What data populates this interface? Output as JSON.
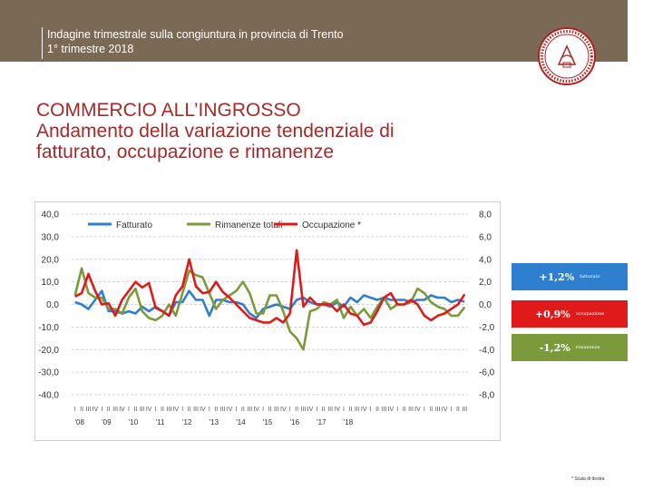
{
  "header": {
    "line1": "Indagine trimestrale sulla congiuntura in provincia di Trento",
    "line2": "1° trimestre 2018"
  },
  "title": {
    "line1": "COMMERCIO ALL’INGROSSO",
    "line2": "Andamento della variazione tendenziale di",
    "line3": "fatturato, occupazione e rimanenze"
  },
  "badges": [
    {
      "value": "+1,2%",
      "label": "fatturato",
      "color": "#2e7fd0"
    },
    {
      "value": "+0,9%",
      "label": "occupazione",
      "color": "#e01a1a"
    },
    {
      "value": "-1,2%",
      "label": "rimanenze",
      "color": "#7a9a3c"
    }
  ],
  "footnote": "* Scala di destra",
  "chart_data": {
    "type": "line",
    "legend_position": "top",
    "grid": true,
    "left_axis": {
      "ticks": [
        "40,0",
        "30,0",
        "20,0",
        "10,0",
        "0,0",
        "-10,0",
        "-20,0",
        "-30,0",
        "-40,0"
      ],
      "range": [
        -40,
        40
      ]
    },
    "right_axis": {
      "ticks": [
        "8,0",
        "6,0",
        "4,0",
        "2,0",
        "0,0",
        "-2,0",
        "-4,0",
        "-6,0",
        "-8,0"
      ],
      "range": [
        -8,
        8
      ]
    },
    "quarter_labels": [
      "I",
      "II",
      "III",
      "IV"
    ],
    "year_labels": [
      "'08",
      "'09",
      "'10",
      "'11",
      "'12",
      "'13",
      "'14",
      "'15",
      "'16",
      "'17",
      "'18"
    ],
    "series": [
      {
        "name": "Fatturato",
        "axis": "left",
        "color": "#2e7fd0",
        "values": [
          1,
          0,
          -2,
          2,
          6,
          -3,
          -3,
          -4,
          -3,
          -4,
          -1,
          -3,
          -1,
          -3,
          -5,
          1,
          1,
          6,
          2,
          2,
          -5,
          2,
          2,
          1,
          1,
          0,
          -4,
          -6,
          -2,
          -1,
          0,
          -1,
          -2,
          2,
          3,
          1,
          0,
          0,
          -1,
          1,
          -1,
          3,
          1,
          4,
          3,
          2,
          3,
          2,
          2,
          2,
          1,
          2,
          2,
          4,
          3,
          3,
          1,
          2,
          1.2
        ]
      },
      {
        "name": "Rimanenze totali",
        "axis": "left",
        "color": "#7a9a3c",
        "values": [
          4,
          16,
          5,
          3,
          3,
          -2,
          -2,
          -4,
          3,
          7,
          -3,
          -6,
          -7,
          -5,
          0,
          -5,
          5,
          15,
          13,
          12,
          5,
          -2,
          2,
          4,
          6,
          10,
          5,
          -4,
          -4,
          4,
          4,
          -3,
          -12,
          -15,
          -20,
          -3,
          -2,
          1,
          0,
          2,
          -6,
          -1,
          -5,
          -2,
          -6,
          -1,
          3,
          -2,
          0,
          0,
          1,
          7,
          5,
          1,
          -1,
          -2,
          -5,
          -5,
          -1.2
        ]
      },
      {
        "name": "Occupazione *",
        "axis": "right",
        "color": "#e01a1a",
        "values": [
          0.7,
          1.0,
          2.7,
          1.2,
          0.0,
          0.1,
          -1.0,
          0.4,
          1.2,
          2.0,
          1.5,
          1.9,
          -0.3,
          -0.6,
          -1.0,
          0.8,
          1.6,
          4.0,
          1.6,
          1.0,
          1.1,
          2.0,
          1.1,
          0.6,
          0.0,
          -0.6,
          -1.2,
          -1.4,
          -1.6,
          -1.6,
          -1.2,
          -1.6,
          -0.8,
          4.8,
          -0.2,
          0.6,
          0.0,
          0.0,
          0.0,
          -0.6,
          0.0,
          -0.8,
          -1.0,
          -1.8,
          -1.6,
          -0.6,
          0.6,
          1.0,
          0.0,
          0.0,
          0.4,
          0.0,
          -1.0,
          -1.4,
          -1.0,
          -0.8,
          -0.4,
          0.0,
          0.9
        ]
      }
    ]
  }
}
